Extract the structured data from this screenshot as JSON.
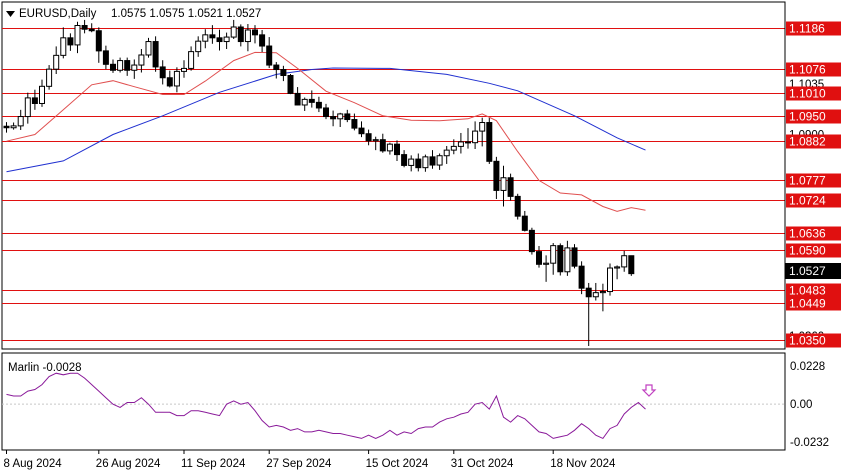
{
  "header": {
    "symbol_tf": "EURUSD,Daily",
    "ohlc": "1.0575 1.0575 1.0521 1.0527",
    "menu_icon": "triangle-down-icon"
  },
  "price_axis": {
    "grey_ticks": [
      "1.1176",
      "1.1035",
      "1.0900",
      "1.0360"
    ],
    "current_price": "1.0527",
    "ylim": [
      1.0325,
      1.1255
    ]
  },
  "levels": [
    {
      "label": "1.1186",
      "value": 1.1186
    },
    {
      "label": "1.1076",
      "value": 1.1076
    },
    {
      "label": "1.1010",
      "value": 1.101
    },
    {
      "label": "1.0950",
      "value": 1.095
    },
    {
      "label": "1.0882",
      "value": 1.0882
    },
    {
      "label": "1.0777",
      "value": 1.0777
    },
    {
      "label": "1.0724",
      "value": 1.0724
    },
    {
      "label": "1.0636",
      "value": 1.0636
    },
    {
      "label": "1.0590",
      "value": 1.059
    },
    {
      "label": "1.0483",
      "value": 1.0483
    },
    {
      "label": "1.0449",
      "value": 1.0449
    },
    {
      "label": "1.0350",
      "value": 1.035
    }
  ],
  "indicator": {
    "label": "Marlin -0.0028",
    "ticks": [
      "0.0228",
      "0.00",
      "-0.0232"
    ],
    "ylim": [
      -0.0232,
      0.0228
    ],
    "arrow_icon": "down-arrow-icon"
  },
  "time_axis": [
    "8 Aug 2024",
    "26 Aug 2024",
    "11 Sep 2024",
    "27 Sep 2024",
    "15 Oct 2024",
    "31 Oct 2024",
    "18 Nov 2024"
  ],
  "colors": {
    "bull": "#ffffff",
    "bear": "#000000",
    "level_line": "#e01010",
    "ma_fast": "#e05050",
    "ma_slow": "#2030d0",
    "oscillator": "#8a1a9a",
    "arrow": "#c040c0"
  },
  "chart_data": {
    "type": "candlestick",
    "candles": [
      [
        1.0922,
        1.0933,
        1.0905,
        1.0918
      ],
      [
        1.0918,
        1.0932,
        1.0913,
        1.0923
      ],
      [
        1.0923,
        1.0966,
        1.0912,
        1.0948
      ],
      [
        1.0948,
        1.1012,
        1.0929,
        1.0998
      ],
      [
        1.0998,
        1.102,
        1.0966,
        1.0983
      ],
      [
        1.0983,
        1.1047,
        1.0974,
        1.1029
      ],
      [
        1.1029,
        1.1086,
        1.102,
        1.1075
      ],
      [
        1.1075,
        1.1136,
        1.1062,
        1.1112
      ],
      [
        1.1112,
        1.1187,
        1.1104,
        1.1159
      ],
      [
        1.1159,
        1.1171,
        1.1124,
        1.114
      ],
      [
        1.114,
        1.1202,
        1.1118,
        1.1192
      ],
      [
        1.1192,
        1.1207,
        1.1171,
        1.1182
      ],
      [
        1.1182,
        1.1198,
        1.1174,
        1.1178
      ],
      [
        1.1178,
        1.1187,
        1.1092,
        1.1124
      ],
      [
        1.1124,
        1.1138,
        1.1075,
        1.1088
      ],
      [
        1.1088,
        1.1101,
        1.1065,
        1.1072
      ],
      [
        1.1072,
        1.1106,
        1.1066,
        1.1098
      ],
      [
        1.1098,
        1.1106,
        1.1057,
        1.1072
      ],
      [
        1.1072,
        1.1101,
        1.1049,
        1.1086
      ],
      [
        1.1086,
        1.1129,
        1.1066,
        1.1113
      ],
      [
        1.1113,
        1.1159,
        1.1106,
        1.1149
      ],
      [
        1.1149,
        1.1163,
        1.1068,
        1.1081
      ],
      [
        1.1081,
        1.1099,
        1.1034,
        1.1052
      ],
      [
        1.1052,
        1.1071,
        1.1026,
        1.103
      ],
      [
        1.103,
        1.108,
        1.1013,
        1.1069
      ],
      [
        1.1069,
        1.1099,
        1.1052,
        1.1077
      ],
      [
        1.1077,
        1.1136,
        1.1071,
        1.1122
      ],
      [
        1.1122,
        1.1163,
        1.1108,
        1.115
      ],
      [
        1.115,
        1.1182,
        1.1131,
        1.1167
      ],
      [
        1.1167,
        1.1193,
        1.1143,
        1.1159
      ],
      [
        1.1159,
        1.1181,
        1.1125,
        1.1149
      ],
      [
        1.1149,
        1.1173,
        1.1129,
        1.1161
      ],
      [
        1.1161,
        1.1207,
        1.1156,
        1.1188
      ],
      [
        1.1188,
        1.1195,
        1.1136,
        1.1149
      ],
      [
        1.1149,
        1.1196,
        1.1123,
        1.118
      ],
      [
        1.118,
        1.1193,
        1.1144,
        1.1167
      ],
      [
        1.1167,
        1.118,
        1.1121,
        1.1137
      ],
      [
        1.1137,
        1.1161,
        1.1078,
        1.1086
      ],
      [
        1.1086,
        1.1094,
        1.105,
        1.1074
      ],
      [
        1.1074,
        1.1084,
        1.1043,
        1.1058
      ],
      [
        1.1058,
        1.1062,
        1.1008,
        1.101
      ],
      [
        1.101,
        1.1027,
        1.0978,
        1.0979
      ],
      [
        1.0979,
        1.0999,
        1.0963,
        1.0994
      ],
      [
        1.0994,
        1.1018,
        1.0972,
        1.0986
      ],
      [
        1.0986,
        1.1001,
        1.096,
        1.0971
      ],
      [
        1.0971,
        1.0982,
        1.0941,
        1.0948
      ],
      [
        1.0948,
        1.0964,
        1.0922,
        1.0942
      ],
      [
        1.0942,
        1.0958,
        1.092,
        1.0955
      ],
      [
        1.0955,
        1.0966,
        1.0933,
        1.094
      ],
      [
        1.094,
        1.0956,
        1.0911,
        1.0917
      ],
      [
        1.0917,
        1.0935,
        1.0893,
        1.0902
      ],
      [
        1.0902,
        1.0913,
        1.0871,
        1.0883
      ],
      [
        1.0883,
        1.0894,
        1.0858,
        1.0886
      ],
      [
        1.0886,
        1.0902,
        1.0851,
        1.0856
      ],
      [
        1.0856,
        1.0878,
        1.0846,
        1.0874
      ],
      [
        1.0874,
        1.0884,
        1.0829,
        1.0846
      ],
      [
        1.0846,
        1.0858,
        1.0812,
        1.0817
      ],
      [
        1.0817,
        1.0844,
        1.0801,
        1.0834
      ],
      [
        1.0834,
        1.0849,
        1.0801,
        1.0811
      ],
      [
        1.0811,
        1.0846,
        1.08,
        1.084
      ],
      [
        1.084,
        1.0858,
        1.0808,
        1.0818
      ],
      [
        1.0818,
        1.0849,
        1.0805,
        1.0843
      ],
      [
        1.0843,
        1.0869,
        1.0821,
        1.0858
      ],
      [
        1.0858,
        1.0887,
        1.0847,
        1.0868
      ],
      [
        1.0868,
        1.0904,
        1.0849,
        1.088
      ],
      [
        1.088,
        1.0917,
        1.0862,
        1.0878
      ],
      [
        1.0878,
        1.0935,
        1.0861,
        1.0909
      ],
      [
        1.0909,
        1.0945,
        1.0868,
        1.0932
      ],
      [
        1.0932,
        1.0944,
        1.0821,
        1.0828
      ],
      [
        1.0828,
        1.084,
        1.0727,
        1.075
      ],
      [
        1.075,
        1.0816,
        1.0707,
        1.0784
      ],
      [
        1.0784,
        1.0795,
        1.0723,
        1.0734
      ],
      [
        1.0734,
        1.0741,
        1.0672,
        1.0681
      ],
      [
        1.0681,
        1.0695,
        1.064,
        1.0643
      ],
      [
        1.0643,
        1.065,
        1.0578,
        1.0586
      ],
      [
        1.0586,
        1.0601,
        1.0543,
        1.0552
      ],
      [
        1.0552,
        1.0576,
        1.0505,
        1.0555
      ],
      [
        1.0555,
        1.0609,
        1.0524,
        1.0602
      ],
      [
        1.0602,
        1.0608,
        1.0522,
        1.0532
      ],
      [
        1.0532,
        1.0615,
        1.0521,
        1.0596
      ],
      [
        1.0596,
        1.0606,
        1.0541,
        1.0547
      ],
      [
        1.0547,
        1.056,
        1.0472,
        1.0488
      ],
      [
        1.0488,
        1.0502,
        1.0333,
        1.0465
      ],
      [
        1.0465,
        1.0502,
        1.0455,
        1.0476
      ],
      [
        1.0476,
        1.05,
        1.0426,
        1.0479
      ],
      [
        1.0479,
        1.0554,
        1.0468,
        1.0542
      ],
      [
        1.0542,
        1.0549,
        1.0512,
        1.0545
      ],
      [
        1.0545,
        1.0588,
        1.0532,
        1.0575
      ],
      [
        1.0575,
        1.0575,
        1.0521,
        1.0527
      ]
    ],
    "ma_fast": [
      [
        0,
        1.0882
      ],
      [
        4,
        1.09
      ],
      [
        8,
        1.0966
      ],
      [
        12,
        1.1033
      ],
      [
        15,
        1.1044
      ],
      [
        18,
        1.1028
      ],
      [
        22,
        1.1007
      ],
      [
        25,
        1.1007
      ],
      [
        28,
        1.1043
      ],
      [
        32,
        1.1098
      ],
      [
        35,
        1.112
      ],
      [
        38,
        1.1119
      ],
      [
        41,
        1.1077
      ],
      [
        45,
        1.1016
      ],
      [
        49,
        1.0985
      ],
      [
        53,
        1.095
      ],
      [
        57,
        1.0938
      ],
      [
        61,
        1.0937
      ],
      [
        65,
        1.0942
      ],
      [
        67,
        1.0955
      ],
      [
        69,
        1.0937
      ],
      [
        72,
        1.0854
      ],
      [
        75,
        1.0777
      ],
      [
        78,
        1.0743
      ],
      [
        81,
        1.0738
      ],
      [
        84,
        1.0707
      ],
      [
        86,
        1.0694
      ],
      [
        88,
        1.0704
      ],
      [
        90,
        1.0697
      ]
    ],
    "ma_slow": [
      [
        0,
        1.08
      ],
      [
        8,
        1.0829
      ],
      [
        15,
        1.09
      ],
      [
        22,
        1.095
      ],
      [
        30,
        1.1013
      ],
      [
        38,
        1.1061
      ],
      [
        43,
        1.1074
      ],
      [
        46,
        1.1078
      ],
      [
        54,
        1.1077
      ],
      [
        62,
        1.1061
      ],
      [
        68,
        1.1037
      ],
      [
        72,
        1.1017
      ],
      [
        80,
        1.095
      ],
      [
        86,
        1.0891
      ],
      [
        90,
        1.0858
      ]
    ],
    "oscillator": [
      0.006,
      0.005,
      0.005,
      0.008,
      0.009,
      0.012,
      0.017,
      0.019,
      0.018,
      0.019,
      0.019,
      0.016,
      0.012,
      0.008,
      0.004,
      0.0,
      -0.002,
      0.001,
      0.001,
      0.004,
      0.0,
      -0.005,
      -0.005,
      -0.005,
      -0.007,
      -0.007,
      -0.004,
      -0.004,
      -0.005,
      -0.006,
      -0.007,
      0.0,
      0.002,
      0.0,
      0.001,
      -0.004,
      -0.01,
      -0.014,
      -0.013,
      -0.014,
      -0.016,
      -0.015,
      -0.017,
      -0.017,
      -0.016,
      -0.017,
      -0.018,
      -0.018,
      -0.019,
      -0.02,
      -0.021,
      -0.019,
      -0.021,
      -0.019,
      -0.016,
      -0.019,
      -0.017,
      -0.018,
      -0.015,
      -0.014,
      -0.014,
      -0.011,
      -0.009,
      -0.008,
      -0.006,
      -0.005,
      0.0,
      0.001,
      -0.003,
      0.005,
      -0.008,
      -0.011,
      -0.007,
      -0.009,
      -0.013,
      -0.017,
      -0.018,
      -0.021,
      -0.02,
      -0.019,
      -0.016,
      -0.012,
      -0.015,
      -0.019,
      -0.021,
      -0.015,
      -0.013,
      -0.006,
      -0.002,
      0.001,
      -0.003
    ]
  }
}
